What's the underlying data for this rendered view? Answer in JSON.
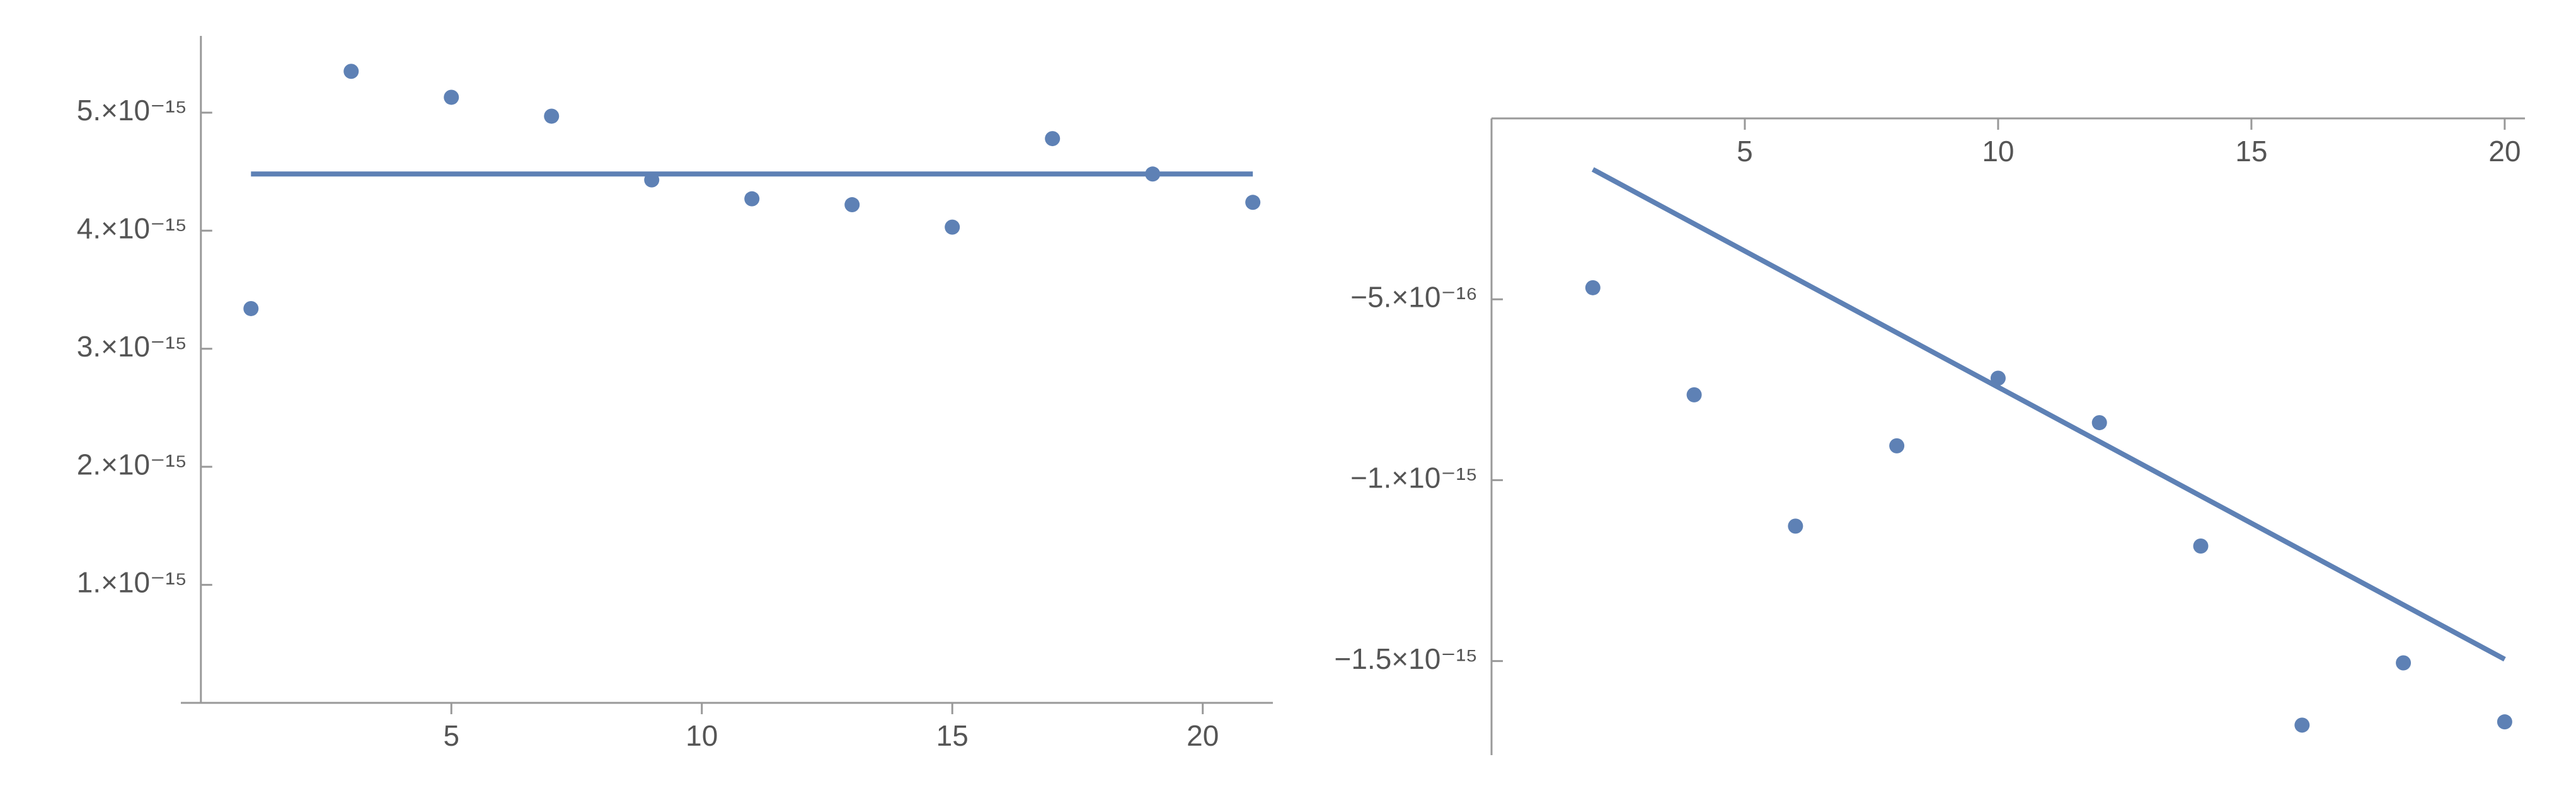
{
  "chart_data": [
    {
      "type": "scatter",
      "xlim": [
        -0.4,
        21.4
      ],
      "ylim": [
        0,
        5.65e-15
      ],
      "xticks": [
        5,
        10,
        15,
        20
      ],
      "yticks": [
        {
          "value": 1e-15,
          "label": "1.×10⁻¹⁵"
        },
        {
          "value": 2e-15,
          "label": "2.×10⁻¹⁵"
        },
        {
          "value": 3e-15,
          "label": "3.×10⁻¹⁵"
        },
        {
          "value": 4e-15,
          "label": "4.×10⁻¹⁵"
        },
        {
          "value": 5e-15,
          "label": "5.×10⁻¹⁵"
        }
      ],
      "series": [
        {
          "type": "scatter",
          "color": "#5e81b5",
          "x": [
            1,
            3,
            5,
            7,
            9,
            11,
            13,
            15,
            17,
            19,
            21
          ],
          "values": [
            3.34e-15,
            5.35e-15,
            5.13e-15,
            4.97e-15,
            4.43e-15,
            4.27e-15,
            4.22e-15,
            4.03e-15,
            4.78e-15,
            4.48e-15,
            4.24e-15
          ]
        },
        {
          "type": "line",
          "color": "#5e81b5",
          "x": [
            1,
            21
          ],
          "values": [
            4.48e-15,
            4.48e-15
          ]
        }
      ]
    },
    {
      "type": "scatter",
      "xlim": [
        0,
        20.4
      ],
      "ylim": [
        -1.76e-15,
        0
      ],
      "xticks": [
        5,
        10,
        15,
        20
      ],
      "yticks": [
        {
          "value": -5e-16,
          "label": "−5.×10⁻¹⁶"
        },
        {
          "value": -1e-15,
          "label": "−1.×10⁻¹⁵"
        },
        {
          "value": -1.5e-15,
          "label": "−1.5×10⁻¹⁵"
        }
      ],
      "series": [
        {
          "type": "scatter",
          "color": "#5e81b5",
          "x": [
            2,
            4,
            6,
            8,
            10,
            12,
            14,
            16,
            18,
            20
          ],
          "values": [
            -4.68e-16,
            -7.64e-16,
            -1.127e-15,
            -9.05e-16,
            -7.18e-16,
            -8.41e-16,
            -1.182e-15,
            -1.677e-15,
            -1.505e-15,
            -1.668e-15
          ]
        },
        {
          "type": "line",
          "color": "#5e81b5",
          "x": [
            2,
            20
          ],
          "values": [
            -1.41e-16,
            -1.495e-15
          ]
        }
      ]
    }
  ]
}
